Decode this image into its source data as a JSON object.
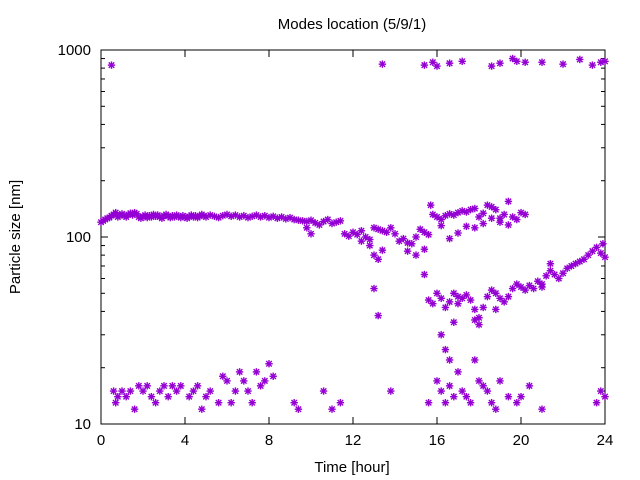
{
  "chart_data": {
    "type": "scatter",
    "title": "Modes location (5/9/1)",
    "xlabel": "Time [hour]",
    "ylabel": "Particle size [nm]",
    "xlim": [
      0,
      24
    ],
    "ylim": [
      10,
      1000
    ],
    "yscale": "log",
    "grid": false,
    "legend": "none",
    "marker_color": "#9400d3",
    "marker": "asterisk",
    "x_ticks": [
      {
        "value": 0,
        "label": "0"
      },
      {
        "value": 4,
        "label": "4"
      },
      {
        "value": 8,
        "label": "8"
      },
      {
        "value": 12,
        "label": "12"
      },
      {
        "value": 16,
        "label": "16"
      },
      {
        "value": 20,
        "label": "20"
      },
      {
        "value": 24,
        "label": "24"
      }
    ],
    "y_ticks": [
      {
        "value": 10,
        "label": "10"
      },
      {
        "value": 100,
        "label": "100"
      },
      {
        "value": 1000,
        "label": "1000"
      }
    ],
    "series": [
      {
        "points": [
          [
            0.0,
            120
          ],
          [
            0.1,
            122
          ],
          [
            0.2,
            124
          ],
          [
            0.3,
            126
          ],
          [
            0.4,
            127
          ],
          [
            0.5,
            130
          ],
          [
            0.6,
            132
          ],
          [
            0.7,
            135
          ],
          [
            0.8,
            128
          ],
          [
            0.9,
            130
          ],
          [
            1.0,
            133
          ],
          [
            1.1,
            130
          ],
          [
            1.2,
            128
          ],
          [
            1.3,
            132
          ],
          [
            1.4,
            134
          ],
          [
            1.5,
            131
          ],
          [
            1.6,
            135
          ],
          [
            1.7,
            133
          ],
          [
            1.8,
            128
          ],
          [
            1.9,
            126
          ],
          [
            2.0,
            129
          ],
          [
            2.1,
            131
          ],
          [
            2.2,
            127
          ],
          [
            2.3,
            130
          ],
          [
            2.4,
            128
          ],
          [
            2.5,
            132
          ],
          [
            2.6,
            129
          ],
          [
            2.7,
            131
          ],
          [
            2.8,
            128
          ],
          [
            2.9,
            126
          ],
          [
            3.0,
            130
          ],
          [
            3.1,
            132
          ],
          [
            3.2,
            129
          ],
          [
            3.3,
            127
          ],
          [
            3.4,
            130
          ],
          [
            3.5,
            128
          ],
          [
            3.6,
            131
          ],
          [
            3.7,
            129
          ],
          [
            3.8,
            127
          ],
          [
            3.9,
            130
          ],
          [
            4.0,
            128
          ],
          [
            4.1,
            126
          ],
          [
            4.2,
            129
          ],
          [
            4.3,
            131
          ],
          [
            4.4,
            128
          ],
          [
            4.5,
            130
          ],
          [
            4.6,
            127
          ],
          [
            4.7,
            129
          ],
          [
            4.8,
            132
          ],
          [
            4.9,
            130
          ],
          [
            5.0,
            128
          ],
          [
            5.2,
            131
          ],
          [
            5.4,
            129
          ],
          [
            5.6,
            127
          ],
          [
            5.8,
            130
          ],
          [
            6.0,
            132
          ],
          [
            6.2,
            129
          ],
          [
            6.4,
            131
          ],
          [
            6.6,
            128
          ],
          [
            6.8,
            130
          ],
          [
            7.0,
            127
          ],
          [
            7.2,
            129
          ],
          [
            7.4,
            131
          ],
          [
            7.6,
            128
          ],
          [
            7.8,
            130
          ],
          [
            8.0,
            127
          ],
          [
            8.2,
            129
          ],
          [
            8.4,
            126
          ],
          [
            8.6,
            128
          ],
          [
            8.8,
            125
          ],
          [
            9.0,
            127
          ],
          [
            9.2,
            124
          ],
          [
            9.4,
            123
          ],
          [
            9.6,
            122
          ],
          [
            9.8,
            121
          ],
          [
            10.0,
            123
          ],
          [
            10.2,
            119
          ],
          [
            10.4,
            116
          ],
          [
            10.6,
            121
          ],
          [
            10.8,
            124
          ],
          [
            11.0,
            118
          ],
          [
            11.2,
            120
          ],
          [
            11.4,
            122
          ],
          [
            11.6,
            104
          ],
          [
            11.8,
            101
          ],
          [
            12.0,
            106
          ],
          [
            12.2,
            103
          ],
          [
            12.4,
            108
          ],
          [
            12.6,
            100
          ],
          [
            12.8,
            97
          ],
          [
            13.0,
            112
          ],
          [
            13.2,
            110
          ],
          [
            13.4,
            108
          ],
          [
            13.6,
            106
          ],
          [
            13.8,
            112
          ],
          [
            14.0,
            104
          ],
          [
            14.2,
            95
          ],
          [
            14.4,
            98
          ],
          [
            14.6,
            93
          ],
          [
            14.8,
            92
          ],
          [
            15.0,
            100
          ],
          [
            15.2,
            110
          ],
          [
            15.4,
            106
          ],
          [
            15.6,
            103
          ],
          [
            15.7,
            148
          ],
          [
            15.8,
            132
          ],
          [
            16.0,
            128
          ],
          [
            16.2,
            124
          ],
          [
            16.4,
            130
          ],
          [
            16.6,
            133
          ],
          [
            16.8,
            131
          ],
          [
            17.0,
            135
          ],
          [
            17.2,
            138
          ],
          [
            17.4,
            136
          ],
          [
            17.6,
            140
          ],
          [
            17.8,
            142
          ],
          [
            18.0,
            128
          ],
          [
            18.2,
            134
          ],
          [
            18.4,
            148
          ],
          [
            18.6,
            145
          ],
          [
            18.8,
            140
          ],
          [
            19.0,
            126
          ],
          [
            19.2,
            132
          ],
          [
            19.4,
            155
          ],
          [
            19.6,
            128
          ],
          [
            19.8,
            124
          ],
          [
            20.0,
            135
          ],
          [
            20.2,
            132
          ],
          [
            9.8,
            112
          ],
          [
            10.0,
            104
          ],
          [
            12.4,
            95
          ],
          [
            12.8,
            90
          ],
          [
            13.0,
            80
          ],
          [
            13.2,
            76
          ],
          [
            13.4,
            85
          ],
          [
            14.6,
            84
          ],
          [
            15.0,
            80
          ],
          [
            15.4,
            86
          ],
          [
            16.2,
            115
          ],
          [
            16.6,
            98
          ],
          [
            17.0,
            105
          ],
          [
            17.4,
            114
          ],
          [
            17.8,
            112
          ],
          [
            18.2,
            118
          ],
          [
            18.6,
            126
          ],
          [
            19.0,
            120
          ],
          [
            19.4,
            116
          ],
          [
            13.0,
            53
          ],
          [
            13.2,
            38
          ],
          [
            15.4,
            63
          ],
          [
            16.2,
            30
          ],
          [
            16.4,
            25
          ],
          [
            16.6,
            22
          ],
          [
            16.8,
            35
          ],
          [
            17.0,
            48
          ],
          [
            15.6,
            46
          ],
          [
            15.8,
            44
          ],
          [
            16.0,
            50
          ],
          [
            16.2,
            47
          ],
          [
            16.4,
            42
          ],
          [
            16.6,
            45
          ],
          [
            16.8,
            50
          ],
          [
            17.0,
            44
          ],
          [
            17.2,
            47
          ],
          [
            17.4,
            49
          ],
          [
            17.6,
            46
          ],
          [
            17.8,
            41
          ],
          [
            18.0,
            37
          ],
          [
            18.2,
            42
          ],
          [
            18.4,
            48
          ],
          [
            18.6,
            52
          ],
          [
            18.8,
            50
          ],
          [
            19.0,
            47
          ],
          [
            19.2,
            45
          ],
          [
            19.4,
            48
          ],
          [
            19.6,
            53
          ],
          [
            19.8,
            56
          ],
          [
            20.0,
            54
          ],
          [
            20.2,
            52
          ],
          [
            20.4,
            55
          ],
          [
            20.6,
            53
          ],
          [
            20.8,
            58
          ],
          [
            21.0,
            56
          ],
          [
            21.2,
            62
          ],
          [
            21.4,
            66
          ],
          [
            21.6,
            63
          ],
          [
            21.8,
            60
          ],
          [
            22.0,
            64
          ],
          [
            22.2,
            68
          ],
          [
            22.4,
            70
          ],
          [
            22.6,
            72
          ],
          [
            22.8,
            74
          ],
          [
            23.0,
            76
          ],
          [
            23.2,
            80
          ],
          [
            23.4,
            84
          ],
          [
            23.6,
            88
          ],
          [
            23.8,
            82
          ],
          [
            24.0,
            78
          ],
          [
            23.9,
            92
          ],
          [
            17.8,
            36
          ],
          [
            18.0,
            34
          ],
          [
            18.8,
            41
          ],
          [
            21.0,
            54
          ],
          [
            21.4,
            72
          ],
          [
            0.6,
            15
          ],
          [
            0.7,
            13
          ],
          [
            0.8,
            14
          ],
          [
            1.0,
            15
          ],
          [
            1.2,
            14
          ],
          [
            1.4,
            15
          ],
          [
            1.6,
            12
          ],
          [
            1.8,
            16
          ],
          [
            2.0,
            15
          ],
          [
            2.2,
            16
          ],
          [
            2.4,
            14
          ],
          [
            2.6,
            13
          ],
          [
            2.8,
            15
          ],
          [
            3.0,
            16
          ],
          [
            3.2,
            14
          ],
          [
            3.4,
            16
          ],
          [
            3.6,
            15
          ],
          [
            3.8,
            16
          ],
          [
            4.2,
            14
          ],
          [
            4.4,
            15
          ],
          [
            4.6,
            16
          ],
          [
            4.8,
            12
          ],
          [
            5.0,
            14
          ],
          [
            5.2,
            15
          ],
          [
            5.6,
            13
          ],
          [
            5.8,
            18
          ],
          [
            6.0,
            17
          ],
          [
            6.2,
            13
          ],
          [
            6.4,
            15
          ],
          [
            6.6,
            19
          ],
          [
            6.8,
            17
          ],
          [
            7.0,
            15
          ],
          [
            7.2,
            13
          ],
          [
            7.4,
            19
          ],
          [
            7.6,
            16
          ],
          [
            7.8,
            17
          ],
          [
            8.0,
            21
          ],
          [
            8.2,
            18
          ],
          [
            9.2,
            13
          ],
          [
            9.4,
            12
          ],
          [
            10.6,
            15
          ],
          [
            11.0,
            12
          ],
          [
            11.4,
            13
          ],
          [
            13.8,
            15
          ],
          [
            15.6,
            13
          ],
          [
            16.0,
            17
          ],
          [
            16.2,
            15
          ],
          [
            16.4,
            13
          ],
          [
            16.6,
            16
          ],
          [
            16.8,
            14
          ],
          [
            17.0,
            19
          ],
          [
            17.2,
            15
          ],
          [
            17.4,
            14
          ],
          [
            17.6,
            13
          ],
          [
            17.8,
            22
          ],
          [
            18.0,
            17
          ],
          [
            18.2,
            16
          ],
          [
            18.4,
            15
          ],
          [
            18.6,
            13
          ],
          [
            18.8,
            12
          ],
          [
            19.0,
            17
          ],
          [
            19.4,
            14
          ],
          [
            19.8,
            13
          ],
          [
            20.0,
            14
          ],
          [
            20.4,
            16
          ],
          [
            21.0,
            12
          ],
          [
            23.6,
            13
          ],
          [
            23.8,
            15
          ],
          [
            24.0,
            14
          ],
          [
            0.5,
            830
          ],
          [
            13.4,
            840
          ],
          [
            15.4,
            830
          ],
          [
            15.8,
            860
          ],
          [
            16.0,
            820
          ],
          [
            16.6,
            850
          ],
          [
            17.2,
            870
          ],
          [
            18.6,
            820
          ],
          [
            19.0,
            850
          ],
          [
            19.6,
            900
          ],
          [
            19.8,
            870
          ],
          [
            20.2,
            860
          ],
          [
            21.0,
            860
          ],
          [
            22.0,
            840
          ],
          [
            22.8,
            890
          ],
          [
            23.4,
            830
          ],
          [
            23.8,
            860
          ],
          [
            24.0,
            870
          ]
        ]
      }
    ]
  }
}
